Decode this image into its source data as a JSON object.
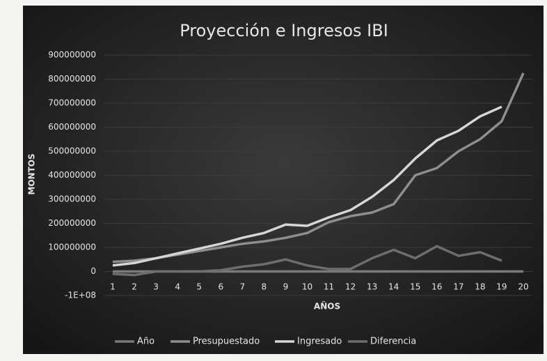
{
  "chart_data": {
    "type": "line",
    "title": "Proyección e Ingresos IBI",
    "x_label": "AÑOS",
    "y_label": "MONTOS",
    "categories": [
      "1",
      "2",
      "3",
      "4",
      "5",
      "6",
      "7",
      "8",
      "9",
      "10",
      "11",
      "12",
      "13",
      "14",
      "15",
      "16",
      "17",
      "18",
      "19",
      "20"
    ],
    "series": [
      {
        "name": "Año",
        "color": "#7a7a7a",
        "values": [
          1,
          2,
          3,
          4,
          5,
          6,
          7,
          8,
          9,
          10,
          11,
          12,
          13,
          14,
          15,
          16,
          17,
          18,
          19,
          20
        ]
      },
      {
        "name": "Presupuestado",
        "color": "#8e8e8e",
        "values": [
          40000000,
          45000000,
          55000000,
          70000000,
          85000000,
          100000000,
          115000000,
          125000000,
          140000000,
          160000000,
          205000000,
          230000000,
          245000000,
          280000000,
          400000000,
          430000000,
          500000000,
          550000000,
          625000000,
          825000000
        ]
      },
      {
        "name": "Ingresado",
        "color": "#d6d6d6",
        "values": [
          25000000,
          35000000,
          55000000,
          75000000,
          95000000,
          115000000,
          140000000,
          160000000,
          195000000,
          190000000,
          225000000,
          255000000,
          310000000,
          380000000,
          470000000,
          545000000,
          585000000,
          645000000,
          685000000,
          null
        ]
      },
      {
        "name": "Diferencia",
        "color": "#6e6e6e",
        "values": [
          -10000000,
          -15000000,
          0,
          0,
          0,
          5000000,
          20000000,
          30000000,
          50000000,
          25000000,
          10000000,
          10000000,
          55000000,
          90000000,
          55000000,
          105000000,
          65000000,
          80000000,
          45000000,
          null
        ]
      }
    ],
    "ylim": [
      -100000000,
      900000000
    ],
    "yticks": [
      {
        "value": -100000000,
        "label": "-1E+08"
      },
      0,
      100000000,
      200000000,
      300000000,
      400000000,
      500000000,
      600000000,
      700000000,
      800000000,
      900000000
    ],
    "legend": "bottom"
  }
}
